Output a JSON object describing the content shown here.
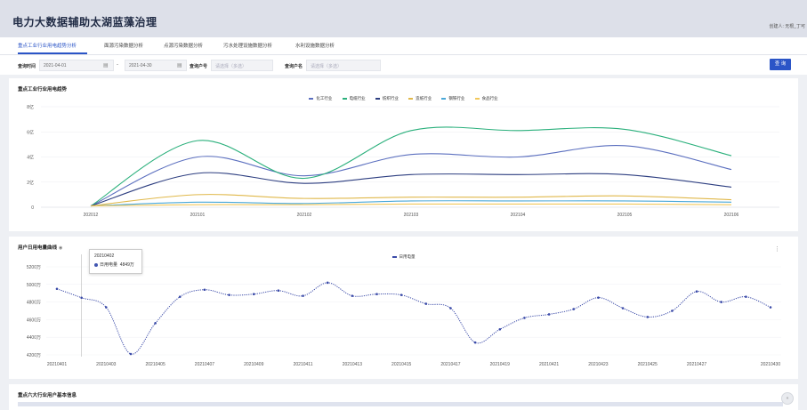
{
  "app": {
    "title": "电力大数据辅助太湖蓝藻治理",
    "creator": "创建人: 无根_丁可"
  },
  "tabs": [
    {
      "label": "重点工业行业用电趋势分析",
      "active": true
    },
    {
      "label": "面源污染数据分析",
      "active": false
    },
    {
      "label": "点源污染数据分析",
      "active": false
    },
    {
      "label": "污水处理设施数据分析",
      "active": false
    },
    {
      "label": "水利设施数据分析",
      "active": false
    }
  ],
  "filters": {
    "time_label": "查询时间",
    "start_date": "2021-04-01",
    "end_date": "2021-04-30",
    "date_separator": "-",
    "account_label": "查询户号",
    "account_placeholder": "请选择（多选）",
    "name_label": "查询户名",
    "name_placeholder": "请选择（多选）",
    "query_button": "查 询"
  },
  "panel1": {
    "title": "重点工业行业用电趋势"
  },
  "panel2": {
    "title": "用户日用电量曲线"
  },
  "panel3": {
    "title": "重点六大行业用户基本信息"
  },
  "tooltip": {
    "date": "20210402",
    "series": "日用电量",
    "value": "4849万"
  },
  "colors": {
    "chemical": "#5b6fbf",
    "cable": "#2bb07c",
    "textile": "#2d3e80",
    "paper": "#e0b84a",
    "steel": "#4aa8d8",
    "food": "#f2c85b",
    "daily": "#3a4aa8",
    "accent": "#2b55c7"
  },
  "chart_data": [
    {
      "type": "line",
      "title": "重点工业行业用电趋势",
      "x": [
        "202012",
        "202101",
        "202102",
        "202103",
        "202104",
        "202105",
        "202106"
      ],
      "y_ticks": [
        "0",
        "2亿",
        "4亿",
        "6亿",
        "8亿"
      ],
      "ylim": [
        0,
        8
      ],
      "series": [
        {
          "name": "化工行业",
          "values": [
            0.1,
            4.0,
            2.5,
            4.2,
            4.0,
            4.9,
            3.0
          ]
        },
        {
          "name": "电缆行业",
          "values": [
            0.1,
            5.3,
            2.3,
            6.1,
            6.1,
            6.2,
            4.1
          ]
        },
        {
          "name": "纺织行业",
          "values": [
            0.1,
            2.7,
            1.9,
            2.6,
            2.6,
            2.6,
            1.6
          ]
        },
        {
          "name": "造纸行业",
          "values": [
            0.1,
            1.0,
            0.7,
            0.8,
            0.8,
            0.9,
            0.6
          ]
        },
        {
          "name": "钢铁行业",
          "values": [
            0.1,
            0.4,
            0.3,
            0.5,
            0.5,
            0.5,
            0.4
          ]
        },
        {
          "name": "食品行业",
          "values": [
            0.1,
            0.2,
            0.2,
            0.25,
            0.25,
            0.25,
            0.2
          ]
        }
      ],
      "legend": "top-center",
      "grid": "horizontal"
    },
    {
      "type": "line",
      "title": "用户日用电量曲线",
      "x_ticks": [
        "20210401",
        "20210403",
        "20210405",
        "20210407",
        "20210409",
        "20210411",
        "20210413",
        "20210415",
        "20210417",
        "20210419",
        "20210421",
        "20210423",
        "20210425",
        "20210427",
        "20210430"
      ],
      "y_ticks": [
        "4200万",
        "4400万",
        "4600万",
        "4800万",
        "5000万",
        "5200万"
      ],
      "ylim": [
        4200,
        5200
      ],
      "series": [
        {
          "name": "日用电量",
          "values": [
            4950,
            4849,
            4740,
            4210,
            4560,
            4860,
            4940,
            4880,
            4890,
            4930,
            4870,
            5020,
            4870,
            4890,
            4880,
            4780,
            4730,
            4340,
            4490,
            4620,
            4660,
            4720,
            4850,
            4730,
            4630,
            4700,
            4920,
            4800,
            4860,
            4740
          ]
        }
      ],
      "legend": "top-center"
    }
  ]
}
